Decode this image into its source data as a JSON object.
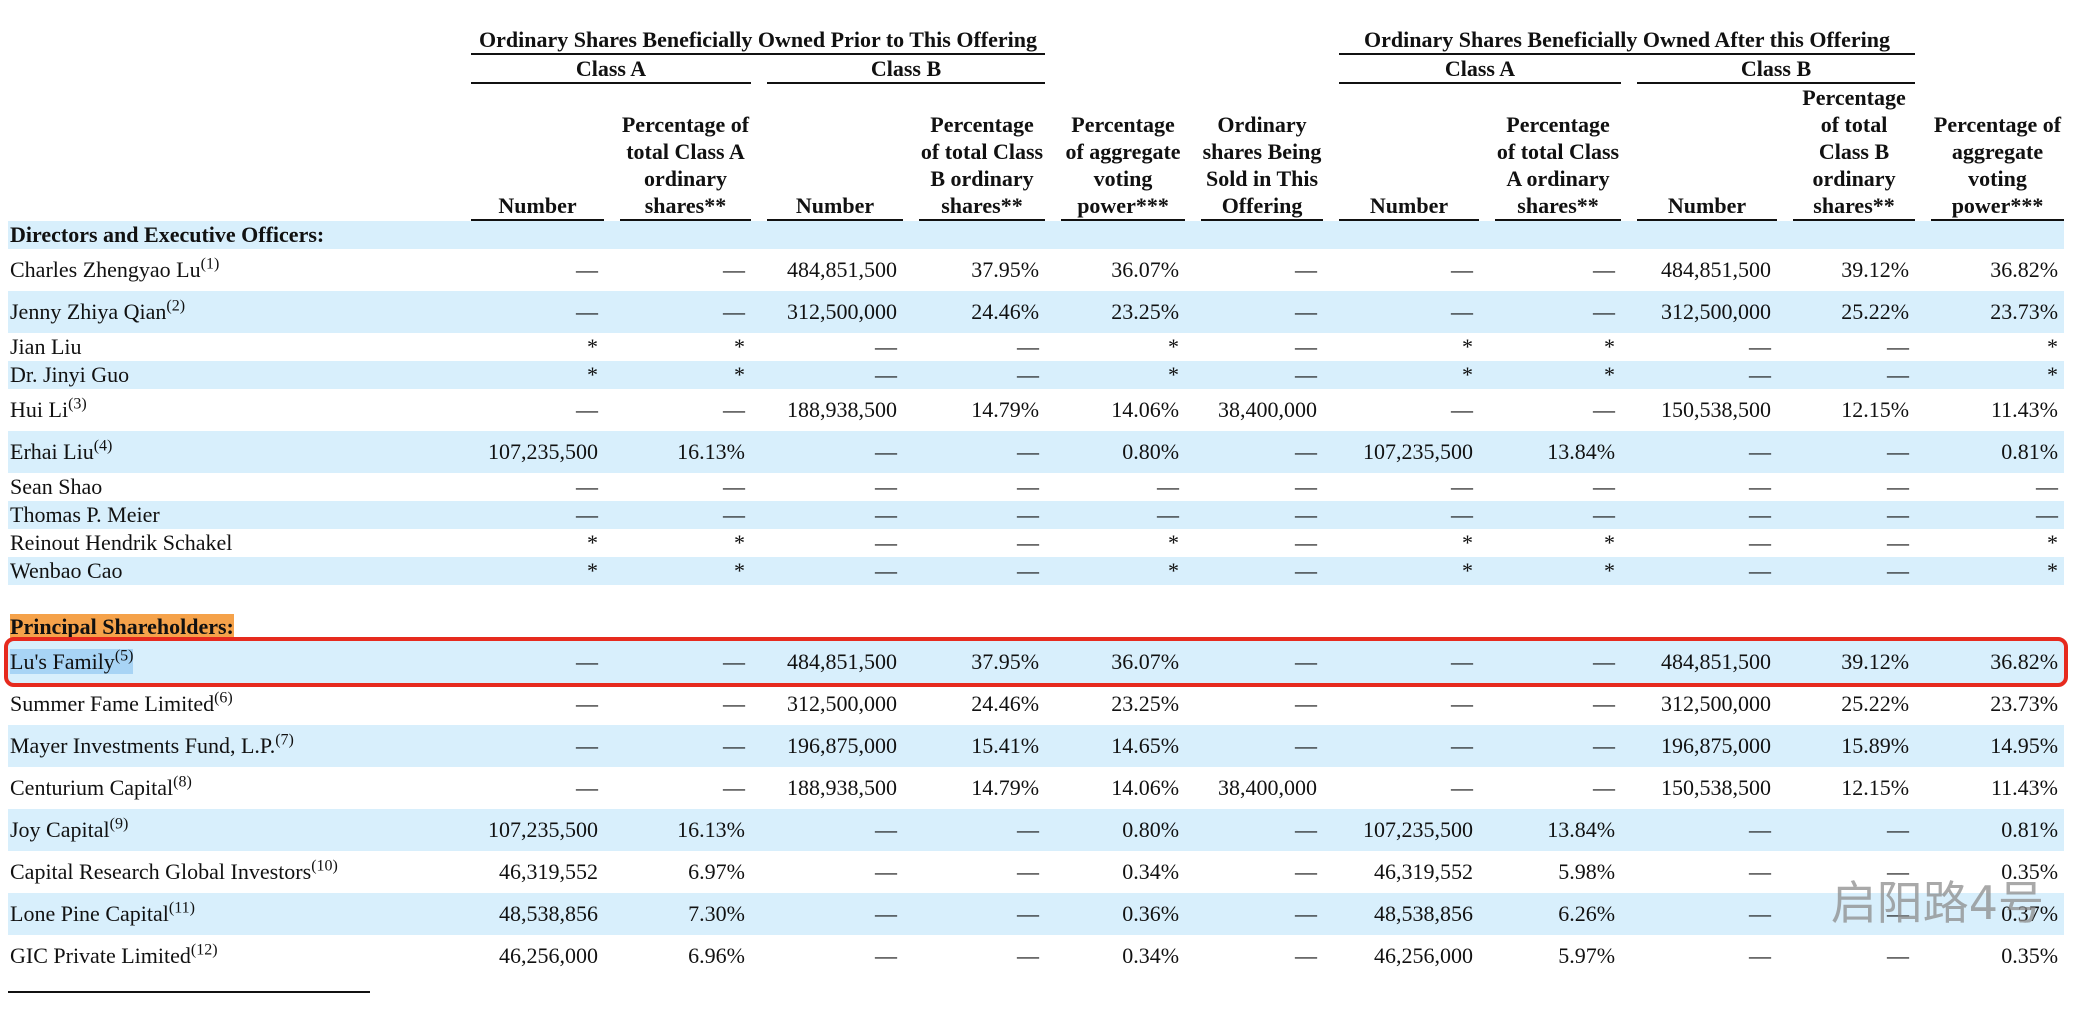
{
  "header": {
    "groups": [
      {
        "label": "Ordinary Shares Beneficially Owned Prior to This Offering",
        "classes": [
          "Class A",
          "Class B"
        ]
      },
      {
        "label": "Ordinary Shares Beneficially Owned After this Offering",
        "classes": [
          "Class A",
          "Class B"
        ]
      }
    ],
    "columns": [
      "Number",
      "Percentage of total Class A ordinary shares**",
      "Number",
      "Percentage of total Class B ordinary shares**",
      "Percentage of aggregate voting power***",
      "Ordinary shares Being Sold in This Offering",
      "Number",
      "Percentage of total Class A ordinary shares**",
      "Number",
      "Percentage of total Class B ordinary shares**",
      "Percentage of aggregate voting power***"
    ]
  },
  "sections": [
    {
      "title": "Directors and Executive Officers:",
      "rows": [
        {
          "name": "Charles Zhengyao Lu",
          "note": "(1)",
          "cells": [
            "—",
            "—",
            "484,851,500",
            "37.95%",
            "36.07%",
            "—",
            "—",
            "—",
            "484,851,500",
            "39.12%",
            "36.82%"
          ]
        },
        {
          "name": "Jenny Zhiya Qian",
          "note": "(2)",
          "cells": [
            "—",
            "—",
            "312,500,000",
            "24.46%",
            "23.25%",
            "—",
            "—",
            "—",
            "312,500,000",
            "25.22%",
            "23.73%"
          ]
        },
        {
          "name": "Jian Liu",
          "cells": [
            "*",
            "*",
            "—",
            "—",
            "*",
            "—",
            "*",
            "*",
            "—",
            "—",
            "*"
          ]
        },
        {
          "name": "Dr. Jinyi Guo",
          "cells": [
            "*",
            "*",
            "—",
            "—",
            "*",
            "—",
            "*",
            "*",
            "—",
            "—",
            "*"
          ]
        },
        {
          "name": "Hui Li",
          "note": "(3)",
          "cells": [
            "—",
            "—",
            "188,938,500",
            "14.79%",
            "14.06%",
            "38,400,000",
            "—",
            "—",
            "150,538,500",
            "12.15%",
            "11.43%"
          ]
        },
        {
          "name": "Erhai Liu",
          "note": "(4)",
          "cells": [
            "107,235,500",
            "16.13%",
            "—",
            "—",
            "0.80%",
            "—",
            "107,235,500",
            "13.84%",
            "—",
            "—",
            "0.81%"
          ]
        },
        {
          "name": "Sean Shao",
          "cells": [
            "—",
            "—",
            "—",
            "—",
            "—",
            "—",
            "—",
            "—",
            "—",
            "—",
            "—"
          ]
        },
        {
          "name": "Thomas P. Meier",
          "cells": [
            "—",
            "—",
            "—",
            "—",
            "—",
            "—",
            "—",
            "—",
            "—",
            "—",
            "—"
          ]
        },
        {
          "name": "Reinout Hendrik Schakel",
          "cells": [
            "*",
            "*",
            "—",
            "—",
            "*",
            "—",
            "*",
            "*",
            "—",
            "—",
            "*"
          ]
        },
        {
          "name": "Wenbao Cao",
          "cells": [
            "*",
            "*",
            "—",
            "—",
            "*",
            "—",
            "*",
            "*",
            "—",
            "—",
            "*"
          ]
        }
      ]
    },
    {
      "title": "Principal Shareholders:",
      "rows": [
        {
          "name": "Lu's Family",
          "note": "(5)",
          "cells": [
            "—",
            "—",
            "484,851,500",
            "37.95%",
            "36.07%",
            "—",
            "—",
            "—",
            "484,851,500",
            "39.12%",
            "36.82%"
          ]
        },
        {
          "name": "Summer Fame Limited",
          "note": "(6)",
          "cells": [
            "—",
            "—",
            "312,500,000",
            "24.46%",
            "23.25%",
            "—",
            "—",
            "—",
            "312,500,000",
            "25.22%",
            "23.73%"
          ]
        },
        {
          "name": "Mayer Investments Fund, L.P.",
          "note": "(7)",
          "cells": [
            "—",
            "—",
            "196,875,000",
            "15.41%",
            "14.65%",
            "—",
            "—",
            "—",
            "196,875,000",
            "15.89%",
            "14.95%"
          ]
        },
        {
          "name": "Centurium Capital",
          "note": "(8)",
          "cells": [
            "—",
            "—",
            "188,938,500",
            "14.79%",
            "14.06%",
            "38,400,000",
            "—",
            "—",
            "150,538,500",
            "12.15%",
            "11.43%"
          ]
        },
        {
          "name": "Joy Capital",
          "note": "(9)",
          "cells": [
            "107,235,500",
            "16.13%",
            "—",
            "—",
            "0.80%",
            "—",
            "107,235,500",
            "13.84%",
            "—",
            "—",
            "0.81%"
          ]
        },
        {
          "name": "Capital Research Global Investors",
          "note": "(10)",
          "cells": [
            "46,319,552",
            "6.97%",
            "—",
            "—",
            "0.34%",
            "—",
            "46,319,552",
            "5.98%",
            "—",
            "—",
            "0.35%"
          ]
        },
        {
          "name": "Lone Pine Capital",
          "note": "(11)",
          "cells": [
            "48,538,856",
            "7.30%",
            "—",
            "—",
            "0.36%",
            "—",
            "48,538,856",
            "6.26%",
            "—",
            "—",
            "0.37%"
          ]
        },
        {
          "name": "GIC Private Limited",
          "note": "(12)",
          "cells": [
            "46,256,000",
            "6.96%",
            "—",
            "—",
            "0.34%",
            "—",
            "46,256,000",
            "5.97%",
            "—",
            "—",
            "0.35%"
          ]
        }
      ]
    }
  ],
  "watermark": "启阳路4号"
}
